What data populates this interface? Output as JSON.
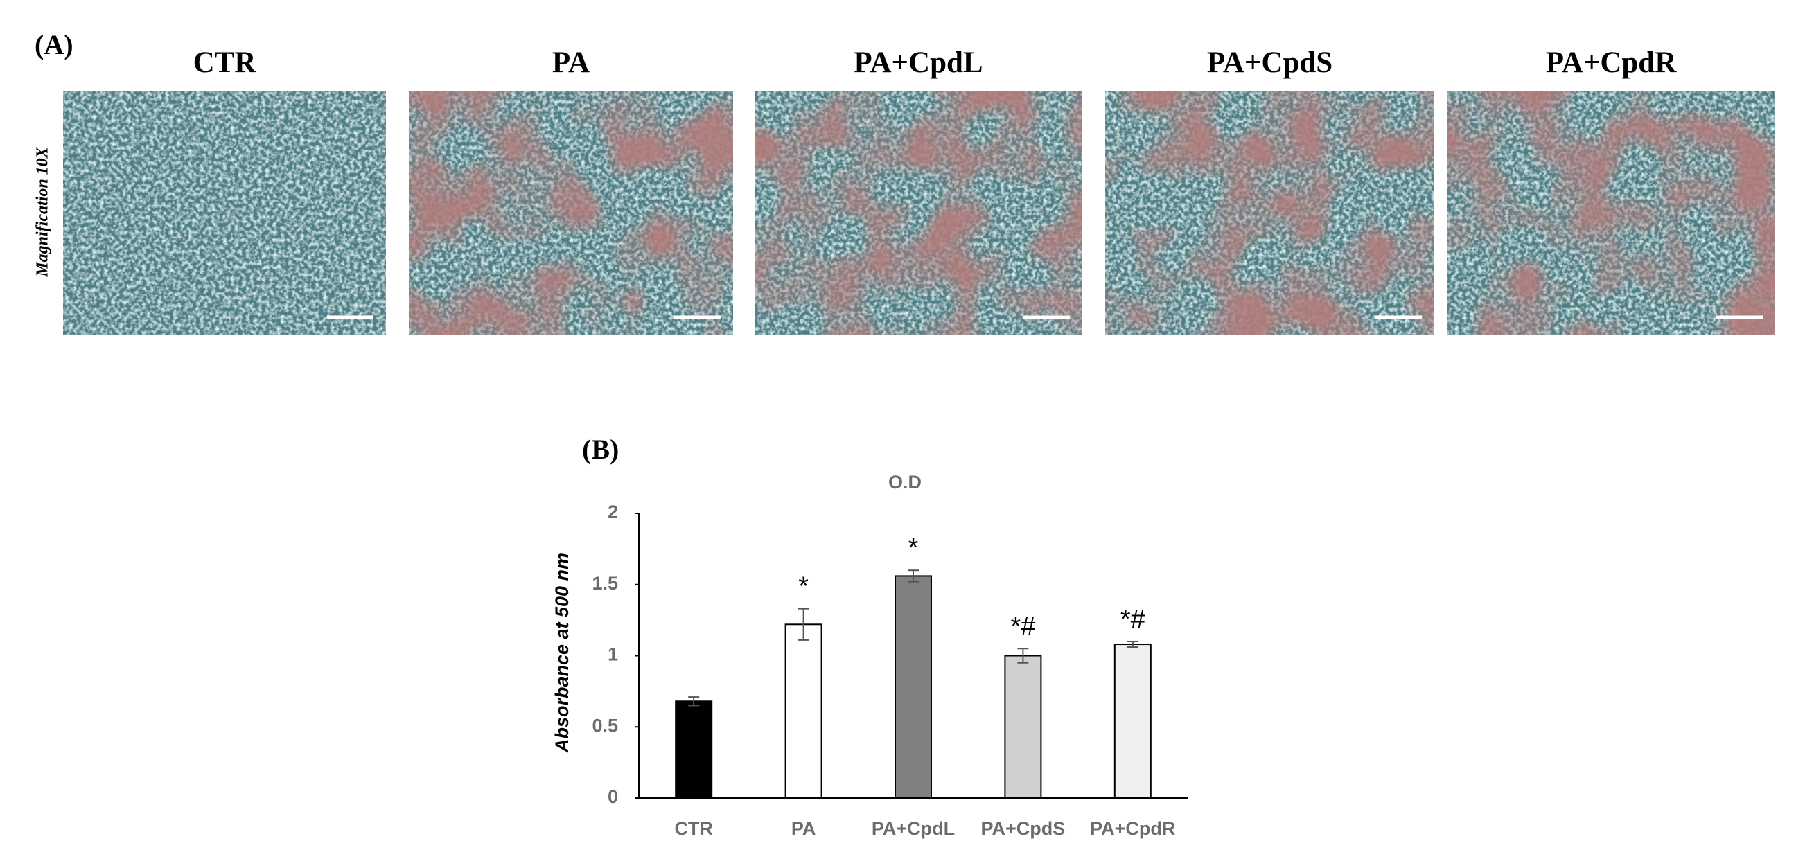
{
  "panel_a": {
    "label": "(A)",
    "side_label": "Magnification 10X",
    "titles": [
      "CTR",
      "PA",
      "PA+CpdL",
      "PA+CpdS",
      "PA+CpdR"
    ]
  },
  "chart_data": {
    "type": "bar",
    "panel_label": "(B)",
    "title": "O.D",
    "y_label": "Absorbance at 500 nm",
    "categories": [
      "CTR",
      "PA",
      "PA+CpdL",
      "PA+CpdS",
      "PA+CpdR"
    ],
    "values": [
      0.68,
      1.22,
      1.56,
      1.0,
      1.08
    ],
    "errors": [
      0.03,
      0.11,
      0.04,
      0.05,
      0.02
    ],
    "annotations": [
      null,
      "*",
      "*",
      "*#",
      "*#"
    ],
    "colors": [
      "#000000",
      "#ffffff",
      "#808080",
      "#d0d0d0",
      "#f0f0f0"
    ],
    "ylim": [
      0,
      2
    ],
    "yticks": [
      0,
      0.5,
      1,
      1.5,
      2
    ],
    "grid": false
  }
}
